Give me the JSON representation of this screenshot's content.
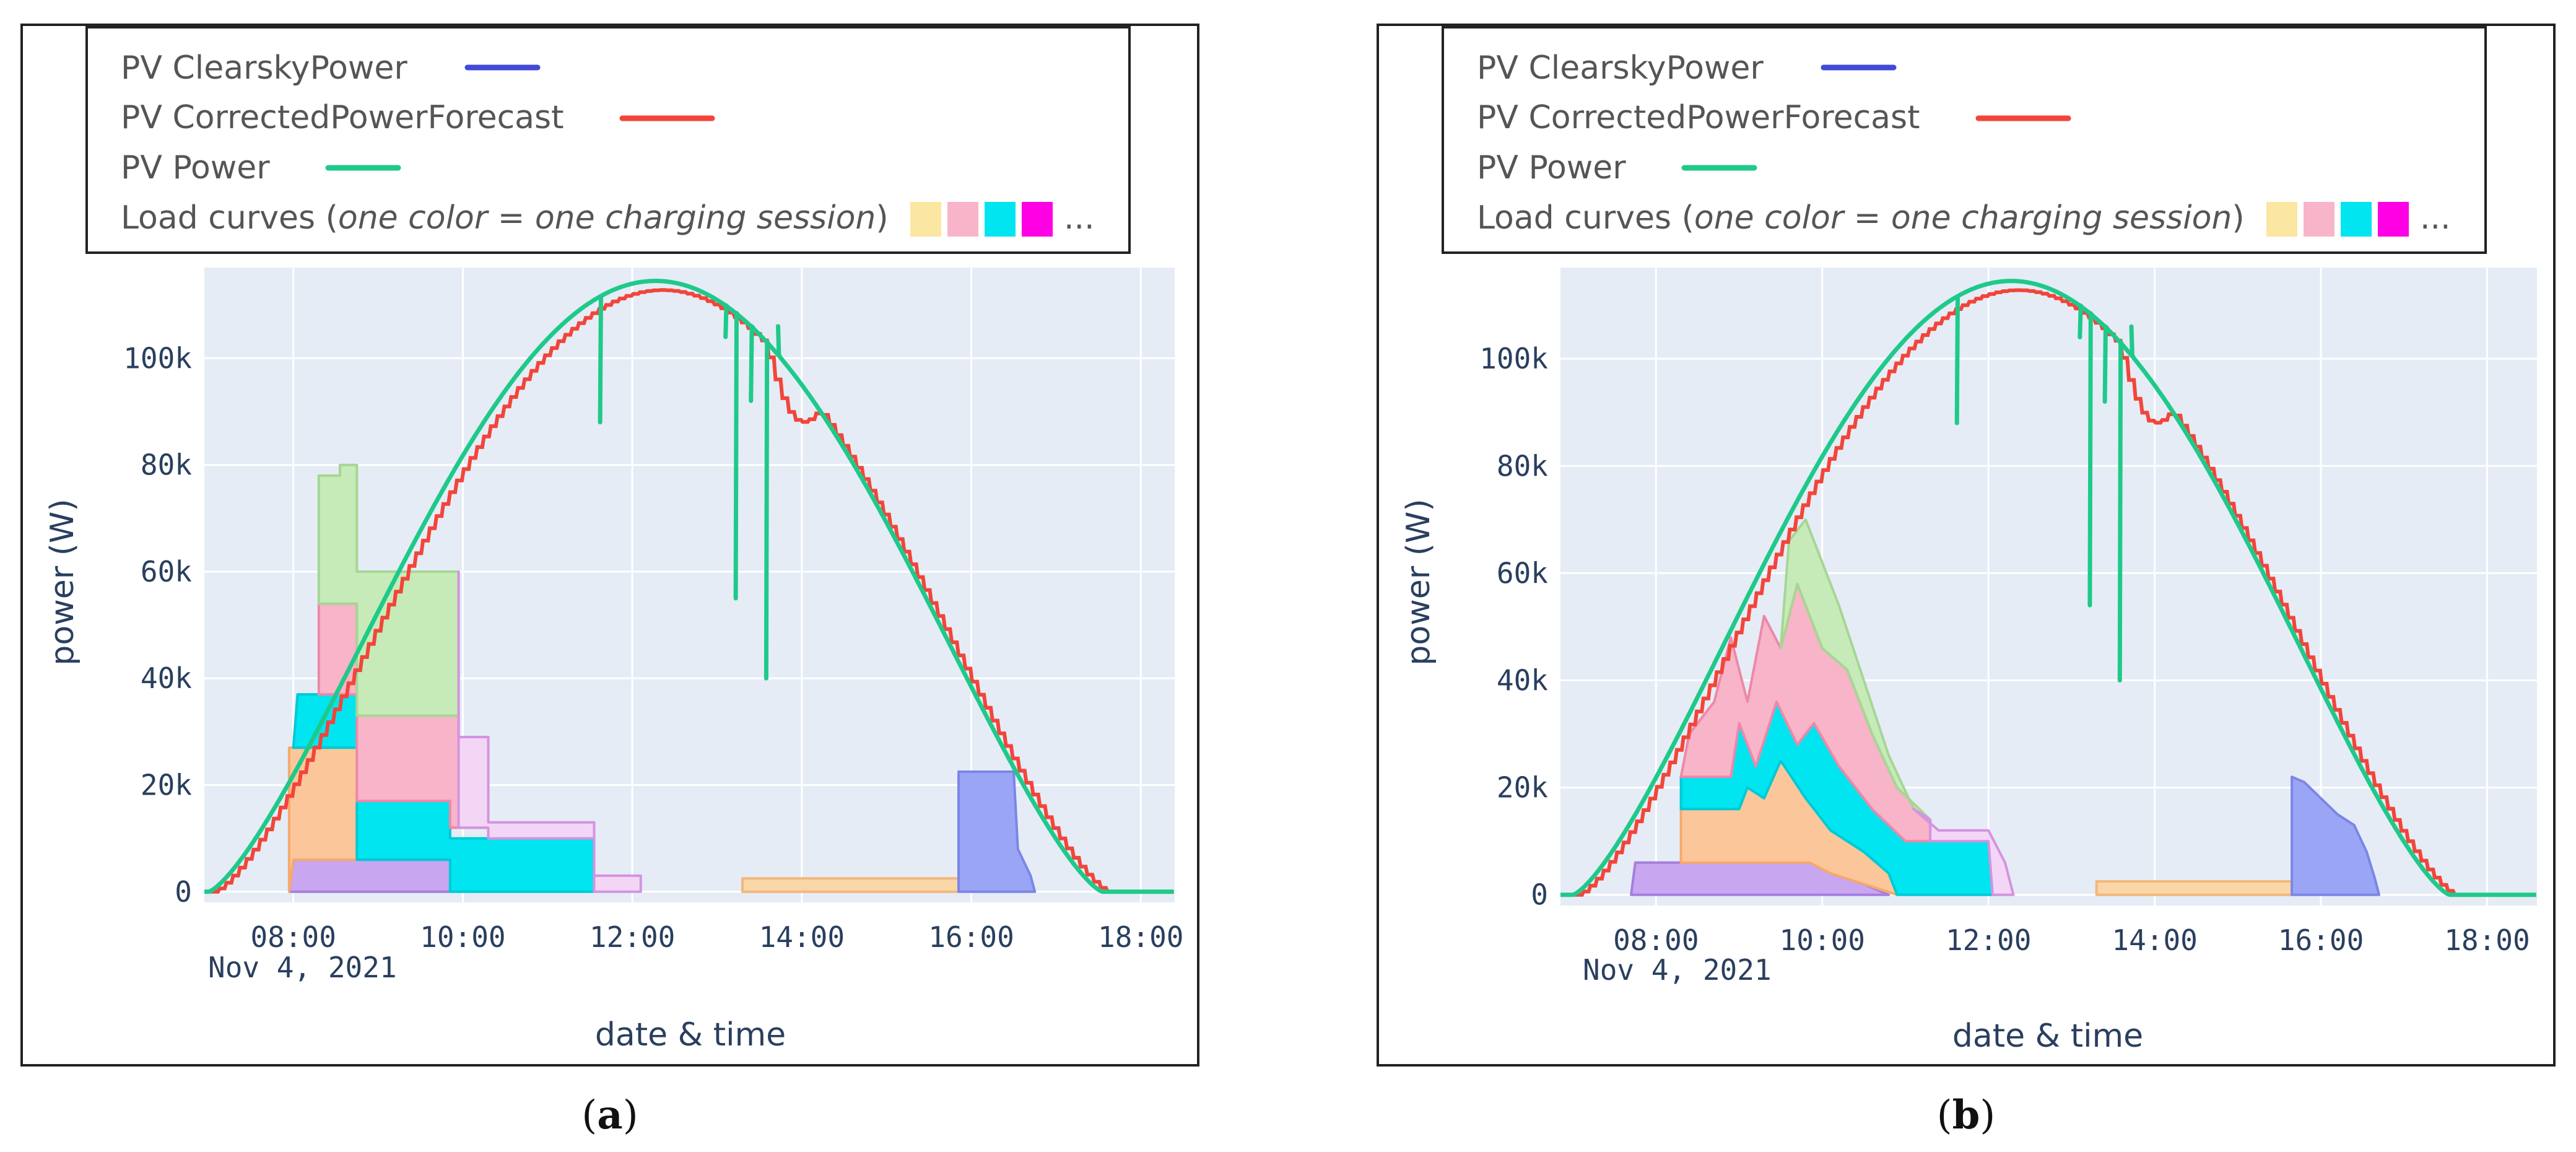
{
  "legend": {
    "clearsky": "PV ClearskyPower",
    "forecast": "PV CorrectedPowerForecast",
    "power": "PV Power",
    "load_prefix": "Load curves (",
    "load_italic": "one color = one charging session",
    "load_suffix": ")",
    "ellipsis": "...",
    "swatches": [
      "#fbe6a2",
      "#f8b4c8",
      "#00e5f0",
      "#ff00e5"
    ]
  },
  "colors": {
    "clearsky": "#4149d6",
    "forecast": "#f2453a",
    "power": "#1fc98a",
    "plot_bg": "#e5ecf6",
    "grid": "#ffffff",
    "tick_text": "#2a3f5f"
  },
  "captions": {
    "a_open": "(",
    "a_letter": "a",
    "a_close": ")",
    "b_open": "(",
    "b_letter": "b",
    "b_close": ")"
  },
  "chart_data": [
    {
      "type": "area",
      "panel": "a",
      "title": "",
      "xlabel": "date & time",
      "ylabel": "power (W)",
      "x_range": [
        6.95,
        18.4
      ],
      "ylim": [
        -2000,
        117000
      ],
      "x_ticks": [
        8,
        10,
        12,
        14,
        16,
        18
      ],
      "x_tick_labels": [
        "08:00",
        "10:00",
        "12:00",
        "14:00",
        "16:00",
        "18:00"
      ],
      "x_date_label": "Nov 4, 2021",
      "y_ticks": [
        0,
        20000,
        40000,
        60000,
        80000,
        100000
      ],
      "y_tick_labels": [
        "0",
        "20k",
        "40k",
        "60k",
        "80k",
        "100k"
      ],
      "pv_sunrise": 7.0,
      "pv_sunset": 17.55,
      "pv_peak": 114500,
      "forecast_dip": [
        13.55,
        14.2,
        8000
      ],
      "power_spikes": [
        [
          11.62,
          88000
        ],
        [
          13.1,
          104000
        ],
        [
          13.22,
          55000
        ],
        [
          13.4,
          92000
        ],
        [
          13.58,
          40000
        ],
        [
          13.72,
          106000
        ]
      ],
      "series": [
        {
          "name": "session purple",
          "fill": "#c9a6f0",
          "stroke": "#a57ee0",
          "points": [
            [
              7.95,
              0
            ],
            [
              8.0,
              6000
            ],
            [
              9.85,
              6000
            ],
            [
              9.85,
              0
            ]
          ]
        },
        {
          "name": "session orange",
          "fill": "#fbc79a",
          "stroke": "#f6a96b",
          "points": [
            [
              7.95,
              0
            ],
            [
              7.95,
              27000
            ],
            [
              8.75,
              27000
            ],
            [
              8.75,
              6000
            ],
            [
              8.0,
              6000
            ]
          ]
        },
        {
          "name": "session teal",
          "fill": "#00e5f0",
          "stroke": "#00c9d6",
          "points": [
            [
              8.0,
              27000
            ],
            [
              8.05,
              37000
            ],
            [
              8.75,
              37000
            ],
            [
              8.75,
              27000
            ]
          ]
        },
        {
          "name": "session teal 2",
          "fill": "#00e5f0",
          "stroke": "#00c9d6",
          "points": [
            [
              8.75,
              6000
            ],
            [
              8.75,
              17000
            ],
            [
              9.85,
              17000
            ],
            [
              9.85,
              10000
            ],
            [
              11.55,
              10000
            ],
            [
              11.55,
              0
            ],
            [
              9.85,
              0
            ],
            [
              9.85,
              6000
            ]
          ]
        },
        {
          "name": "session pink",
          "fill": "#f8b4c8",
          "stroke": "#ee88a8",
          "points": [
            [
              8.3,
              37000
            ],
            [
              8.3,
              54000
            ],
            [
              8.75,
              54000
            ],
            [
              8.75,
              33000
            ],
            [
              9.95,
              33000
            ],
            [
              9.95,
              29000
            ],
            [
              10.3,
              29000
            ],
            [
              10.3,
              12000
            ],
            [
              9.85,
              12000
            ],
            [
              9.85,
              17000
            ],
            [
              8.75,
              17000
            ],
            [
              8.75,
              37000
            ]
          ]
        },
        {
          "name": "session green",
          "fill": "#c6ebb8",
          "stroke": "#a6d694",
          "points": [
            [
              8.3,
              54000
            ],
            [
              8.3,
              78000
            ],
            [
              8.55,
              78000
            ],
            [
              8.55,
              80000
            ],
            [
              8.75,
              80000
            ],
            [
              8.75,
              60000
            ],
            [
              9.95,
              60000
            ],
            [
              9.95,
              33000
            ],
            [
              8.75,
              33000
            ],
            [
              8.75,
              54000
            ]
          ]
        },
        {
          "name": "session violet outline",
          "fill": "#f3d6f5",
          "stroke": "#d493e0",
          "points": [
            [
              9.95,
              60000
            ],
            [
              9.95,
              29000
            ],
            [
              10.3,
              29000
            ],
            [
              10.3,
              13000
            ],
            [
              11.55,
              13000
            ],
            [
              11.55,
              3000
            ],
            [
              12.1,
              3000
            ],
            [
              12.1,
              0
            ],
            [
              11.55,
              0
            ],
            [
              11.55,
              10000
            ],
            [
              10.3,
              10000
            ],
            [
              10.3,
              12000
            ],
            [
              9.95,
              12000
            ]
          ]
        },
        {
          "name": "session light orange",
          "fill": "#fad7a8",
          "stroke": "#f3b77a",
          "points": [
            [
              13.3,
              0
            ],
            [
              13.3,
              2500
            ],
            [
              15.85,
              2500
            ],
            [
              15.85,
              0
            ]
          ]
        },
        {
          "name": "session blue",
          "fill": "#9aa6f5",
          "stroke": "#7b86e6",
          "points": [
            [
              15.85,
              0
            ],
            [
              15.85,
              22500
            ],
            [
              16.5,
              22500
            ],
            [
              16.55,
              8000
            ],
            [
              16.7,
              3000
            ],
            [
              16.75,
              0
            ]
          ]
        }
      ]
    },
    {
      "type": "area",
      "panel": "b",
      "title": "",
      "xlabel": "date & time",
      "ylabel": "power (W)",
      "x_range": [
        6.85,
        18.6
      ],
      "ylim": [
        -2000,
        117000
      ],
      "x_ticks": [
        8,
        10,
        12,
        14,
        16,
        18
      ],
      "x_tick_labels": [
        "08:00",
        "10:00",
        "12:00",
        "14:00",
        "16:00",
        "18:00"
      ],
      "x_date_label": "Nov 4, 2021",
      "y_ticks": [
        0,
        20000,
        40000,
        60000,
        80000,
        100000
      ],
      "y_tick_labels": [
        "0",
        "20k",
        "40k",
        "60k",
        "80k",
        "100k"
      ],
      "pv_sunrise": 7.0,
      "pv_sunset": 17.55,
      "pv_peak": 114500,
      "forecast_dip": [
        13.55,
        14.2,
        8000
      ],
      "power_spikes": [
        [
          11.62,
          88000
        ],
        [
          13.1,
          104000
        ],
        [
          13.22,
          54000
        ],
        [
          13.4,
          92000
        ],
        [
          13.58,
          40000
        ],
        [
          13.72,
          106000
        ]
      ],
      "series": [
        {
          "name": "session purple",
          "fill": "#c9a6f0",
          "stroke": "#a57ee0",
          "points": [
            [
              7.7,
              0
            ],
            [
              7.75,
              6000
            ],
            [
              9.85,
              6000
            ],
            [
              10.1,
              4000
            ],
            [
              10.5,
              2000
            ],
            [
              10.8,
              0
            ]
          ]
        },
        {
          "name": "session orange",
          "fill": "#fbc79a",
          "stroke": "#f6a96b",
          "points": [
            [
              8.3,
              6000
            ],
            [
              8.3,
              16000
            ],
            [
              9.0,
              16000
            ],
            [
              9.1,
              20000
            ],
            [
              9.3,
              18000
            ],
            [
              9.5,
              25000
            ],
            [
              9.8,
              18000
            ],
            [
              10.1,
              12000
            ],
            [
              10.5,
              8000
            ],
            [
              10.8,
              4000
            ],
            [
              10.9,
              0
            ],
            [
              10.5,
              2000
            ],
            [
              10.1,
              4000
            ],
            [
              9.85,
              6000
            ]
          ]
        },
        {
          "name": "session teal",
          "fill": "#00e5f0",
          "stroke": "#00c9d6",
          "points": [
            [
              8.3,
              16000
            ],
            [
              8.3,
              22000
            ],
            [
              8.9,
              22000
            ],
            [
              9.0,
              32000
            ],
            [
              9.2,
              24000
            ],
            [
              9.45,
              36000
            ],
            [
              9.7,
              28000
            ],
            [
              9.9,
              32000
            ],
            [
              10.2,
              24000
            ],
            [
              10.6,
              16000
            ],
            [
              11.0,
              10000
            ],
            [
              12.0,
              10000
            ],
            [
              12.05,
              0
            ],
            [
              10.9,
              0
            ],
            [
              10.8,
              4000
            ],
            [
              10.5,
              8000
            ],
            [
              10.1,
              12000
            ],
            [
              9.8,
              18000
            ],
            [
              9.5,
              25000
            ],
            [
              9.3,
              18000
            ],
            [
              9.1,
              20000
            ],
            [
              9.0,
              16000
            ]
          ]
        },
        {
          "name": "session pink",
          "fill": "#f8b4c8",
          "stroke": "#ee88a8",
          "points": [
            [
              8.3,
              22000
            ],
            [
              8.4,
              30000
            ],
            [
              8.7,
              36000
            ],
            [
              8.9,
              48000
            ],
            [
              9.1,
              36000
            ],
            [
              9.3,
              52000
            ],
            [
              9.5,
              46000
            ],
            [
              9.7,
              58000
            ],
            [
              10.0,
              46000
            ],
            [
              10.3,
              42000
            ],
            [
              10.6,
              30000
            ],
            [
              10.9,
              20000
            ],
            [
              11.3,
              14000
            ],
            [
              11.3,
              10000
            ],
            [
              11.0,
              10000
            ],
            [
              10.6,
              16000
            ],
            [
              10.2,
              24000
            ],
            [
              9.9,
              32000
            ],
            [
              9.7,
              28000
            ],
            [
              9.45,
              36000
            ],
            [
              9.2,
              24000
            ],
            [
              9.0,
              32000
            ],
            [
              8.9,
              22000
            ]
          ]
        },
        {
          "name": "session green",
          "fill": "#c6ebb8",
          "stroke": "#a6d694",
          "points": [
            [
              9.5,
              46000
            ],
            [
              9.6,
              66000
            ],
            [
              9.8,
              70000
            ],
            [
              10.0,
              62000
            ],
            [
              10.2,
              54000
            ],
            [
              10.5,
              40000
            ],
            [
              10.8,
              26000
            ],
            [
              11.1,
              16000
            ],
            [
              11.3,
              14000
            ],
            [
              10.9,
              20000
            ],
            [
              10.6,
              30000
            ],
            [
              10.3,
              42000
            ],
            [
              10.0,
              46000
            ],
            [
              9.7,
              58000
            ]
          ]
        },
        {
          "name": "session violet outline",
          "fill": "#f3d6f5",
          "stroke": "#d493e0",
          "points": [
            [
              11.1,
              16000
            ],
            [
              11.4,
              12000
            ],
            [
              12.0,
              12000
            ],
            [
              12.2,
              6000
            ],
            [
              12.3,
              0
            ],
            [
              12.05,
              0
            ],
            [
              12.0,
              10000
            ],
            [
              11.3,
              10000
            ],
            [
              11.3,
              14000
            ]
          ]
        },
        {
          "name": "session light orange",
          "fill": "#fad7a8",
          "stroke": "#f3b77a",
          "points": [
            [
              13.3,
              0
            ],
            [
              13.3,
              2500
            ],
            [
              15.65,
              2500
            ],
            [
              15.65,
              0
            ]
          ]
        },
        {
          "name": "session blue",
          "fill": "#9aa6f5",
          "stroke": "#7b86e6",
          "points": [
            [
              15.65,
              0
            ],
            [
              15.65,
              22000
            ],
            [
              15.8,
              21000
            ],
            [
              16.0,
              18000
            ],
            [
              16.2,
              15000
            ],
            [
              16.4,
              13000
            ],
            [
              16.55,
              8000
            ],
            [
              16.65,
              3000
            ],
            [
              16.7,
              0
            ]
          ]
        }
      ]
    }
  ]
}
